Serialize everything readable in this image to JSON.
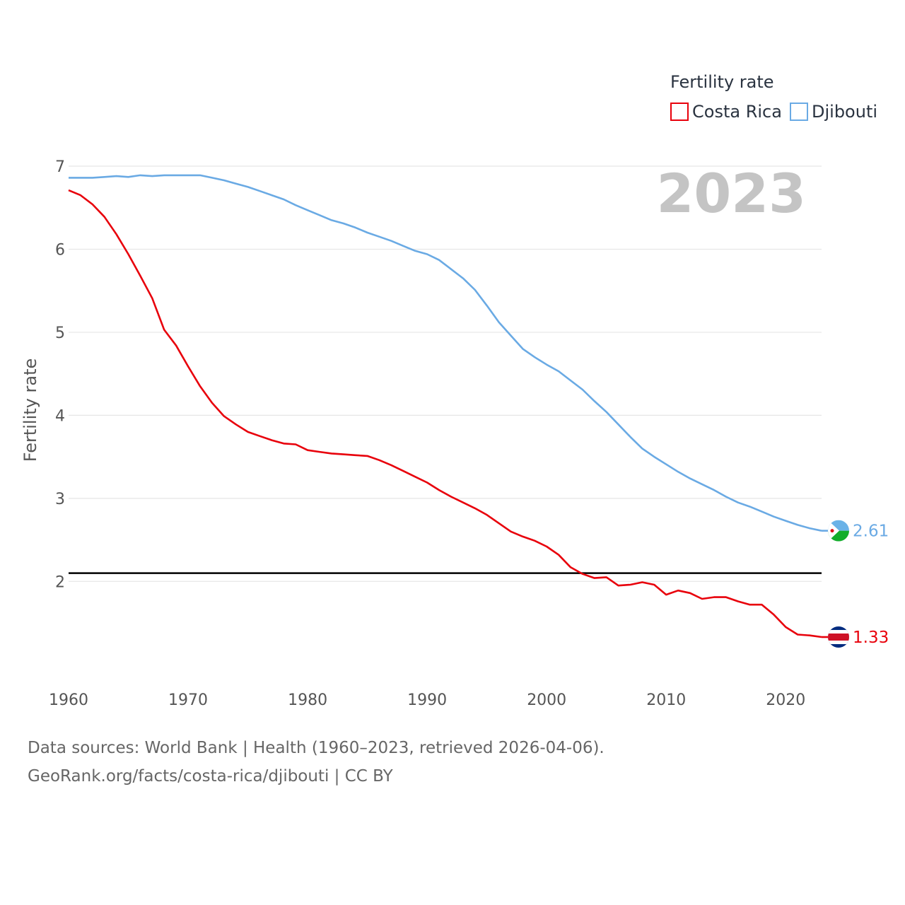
{
  "chart_data": {
    "type": "line",
    "title": "",
    "legend_title": "Fertility rate",
    "ylabel": "Fertility rate",
    "xlabel": "",
    "year_label": "2023",
    "xlim": [
      1960,
      2023
    ],
    "ylim": [
      0.93,
      7.0
    ],
    "x_ticks": [
      1960,
      1970,
      1980,
      1990,
      2000,
      2010,
      2020
    ],
    "y_ticks": [
      2,
      3,
      4,
      5,
      6,
      7
    ],
    "reference_line": 2.1,
    "x": [
      1960,
      1961,
      1962,
      1963,
      1964,
      1965,
      1966,
      1967,
      1968,
      1969,
      1970,
      1971,
      1972,
      1973,
      1974,
      1975,
      1976,
      1977,
      1978,
      1979,
      1980,
      1981,
      1982,
      1983,
      1984,
      1985,
      1986,
      1987,
      1988,
      1989,
      1990,
      1991,
      1992,
      1993,
      1994,
      1995,
      1996,
      1997,
      1998,
      1999,
      2000,
      2001,
      2002,
      2003,
      2004,
      2005,
      2006,
      2007,
      2008,
      2009,
      2010,
      2011,
      2012,
      2013,
      2014,
      2015,
      2016,
      2017,
      2018,
      2019,
      2020,
      2021,
      2022,
      2023
    ],
    "series": [
      {
        "name": "Costa Rica",
        "color": "#e8000b",
        "end_label": "1.33",
        "values": [
          6.71,
          6.65,
          6.54,
          6.39,
          6.18,
          5.94,
          5.68,
          5.41,
          5.03,
          4.84,
          4.59,
          4.35,
          4.15,
          3.99,
          3.89,
          3.8,
          3.75,
          3.7,
          3.66,
          3.65,
          3.58,
          3.56,
          3.54,
          3.53,
          3.52,
          3.51,
          3.46,
          3.4,
          3.33,
          3.26,
          3.19,
          3.1,
          3.02,
          2.95,
          2.88,
          2.8,
          2.7,
          2.6,
          2.54,
          2.49,
          2.42,
          2.32,
          2.17,
          2.09,
          2.04,
          2.05,
          1.95,
          1.96,
          1.99,
          1.96,
          1.84,
          1.89,
          1.86,
          1.79,
          1.81,
          1.81,
          1.76,
          1.72,
          1.72,
          1.6,
          1.45,
          1.36,
          1.35,
          1.33
        ]
      },
      {
        "name": "Djibouti",
        "color": "#6aaae4",
        "end_label": "2.61",
        "values": [
          6.86,
          6.86,
          6.86,
          6.87,
          6.88,
          6.87,
          6.89,
          6.88,
          6.89,
          6.89,
          6.89,
          6.89,
          6.86,
          6.83,
          6.79,
          6.75,
          6.7,
          6.65,
          6.6,
          6.53,
          6.47,
          6.41,
          6.35,
          6.31,
          6.26,
          6.2,
          6.15,
          6.1,
          6.04,
          5.98,
          5.94,
          5.87,
          5.76,
          5.65,
          5.51,
          5.32,
          5.12,
          4.96,
          4.8,
          4.7,
          4.61,
          4.53,
          4.42,
          4.31,
          4.17,
          4.04,
          3.89,
          3.74,
          3.6,
          3.5,
          3.41,
          3.32,
          3.24,
          3.17,
          3.1,
          3.02,
          2.95,
          2.9,
          2.84,
          2.78,
          2.73,
          2.68,
          2.64,
          2.61
        ]
      }
    ]
  },
  "footer": {
    "line1": "Data sources: World Bank | Health (1960–2023, retrieved 2026-04-06).",
    "line2": "GeoRank.org/facts/costa-rica/djibouti | CC BY"
  }
}
